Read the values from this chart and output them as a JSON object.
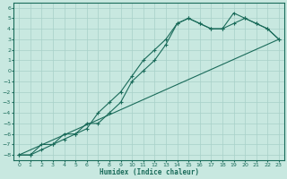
{
  "xlabel": "Humidex (Indice chaleur)",
  "bg_color": "#c8e8e0",
  "grid_color": "#a8d0c8",
  "line_color": "#1a6b5a",
  "xlim": [
    -0.5,
    23.5
  ],
  "ylim": [
    -8.5,
    6.5
  ],
  "xticks": [
    0,
    1,
    2,
    3,
    4,
    5,
    6,
    7,
    8,
    9,
    10,
    11,
    12,
    13,
    14,
    15,
    16,
    17,
    18,
    19,
    20,
    21,
    22,
    23
  ],
  "yticks": [
    -8,
    -7,
    -6,
    -5,
    -4,
    -3,
    -2,
    -1,
    0,
    1,
    2,
    3,
    4,
    5,
    6
  ],
  "line1_x": [
    0,
    1,
    2,
    3,
    4,
    5,
    6,
    7,
    8,
    9,
    10,
    11,
    12,
    13,
    14,
    15,
    16,
    17,
    18,
    19,
    20,
    21,
    22,
    23
  ],
  "line1_y": [
    -8,
    -8,
    -7,
    -7,
    -6.5,
    -6,
    -5.5,
    -4,
    -3,
    -2,
    -0.5,
    1,
    2,
    3,
    4.5,
    5,
    4.5,
    4,
    4,
    5.5,
    5,
    4.5,
    4,
    3
  ],
  "line2_x": [
    0,
    1,
    2,
    3,
    4,
    5,
    6,
    7,
    8,
    9,
    10,
    11,
    12,
    13,
    14,
    15,
    16,
    17,
    18,
    19,
    20,
    21,
    22,
    23
  ],
  "line2_y": [
    -8,
    -8,
    -7.5,
    -7,
    -6,
    -6,
    -5,
    -5,
    -4,
    -3,
    -1,
    0,
    1,
    2.5,
    4.5,
    5,
    4.5,
    4,
    4,
    4.5,
    5,
    4.5,
    4,
    3
  ],
  "line3_x": [
    0,
    23
  ],
  "line3_y": [
    -8,
    3
  ]
}
